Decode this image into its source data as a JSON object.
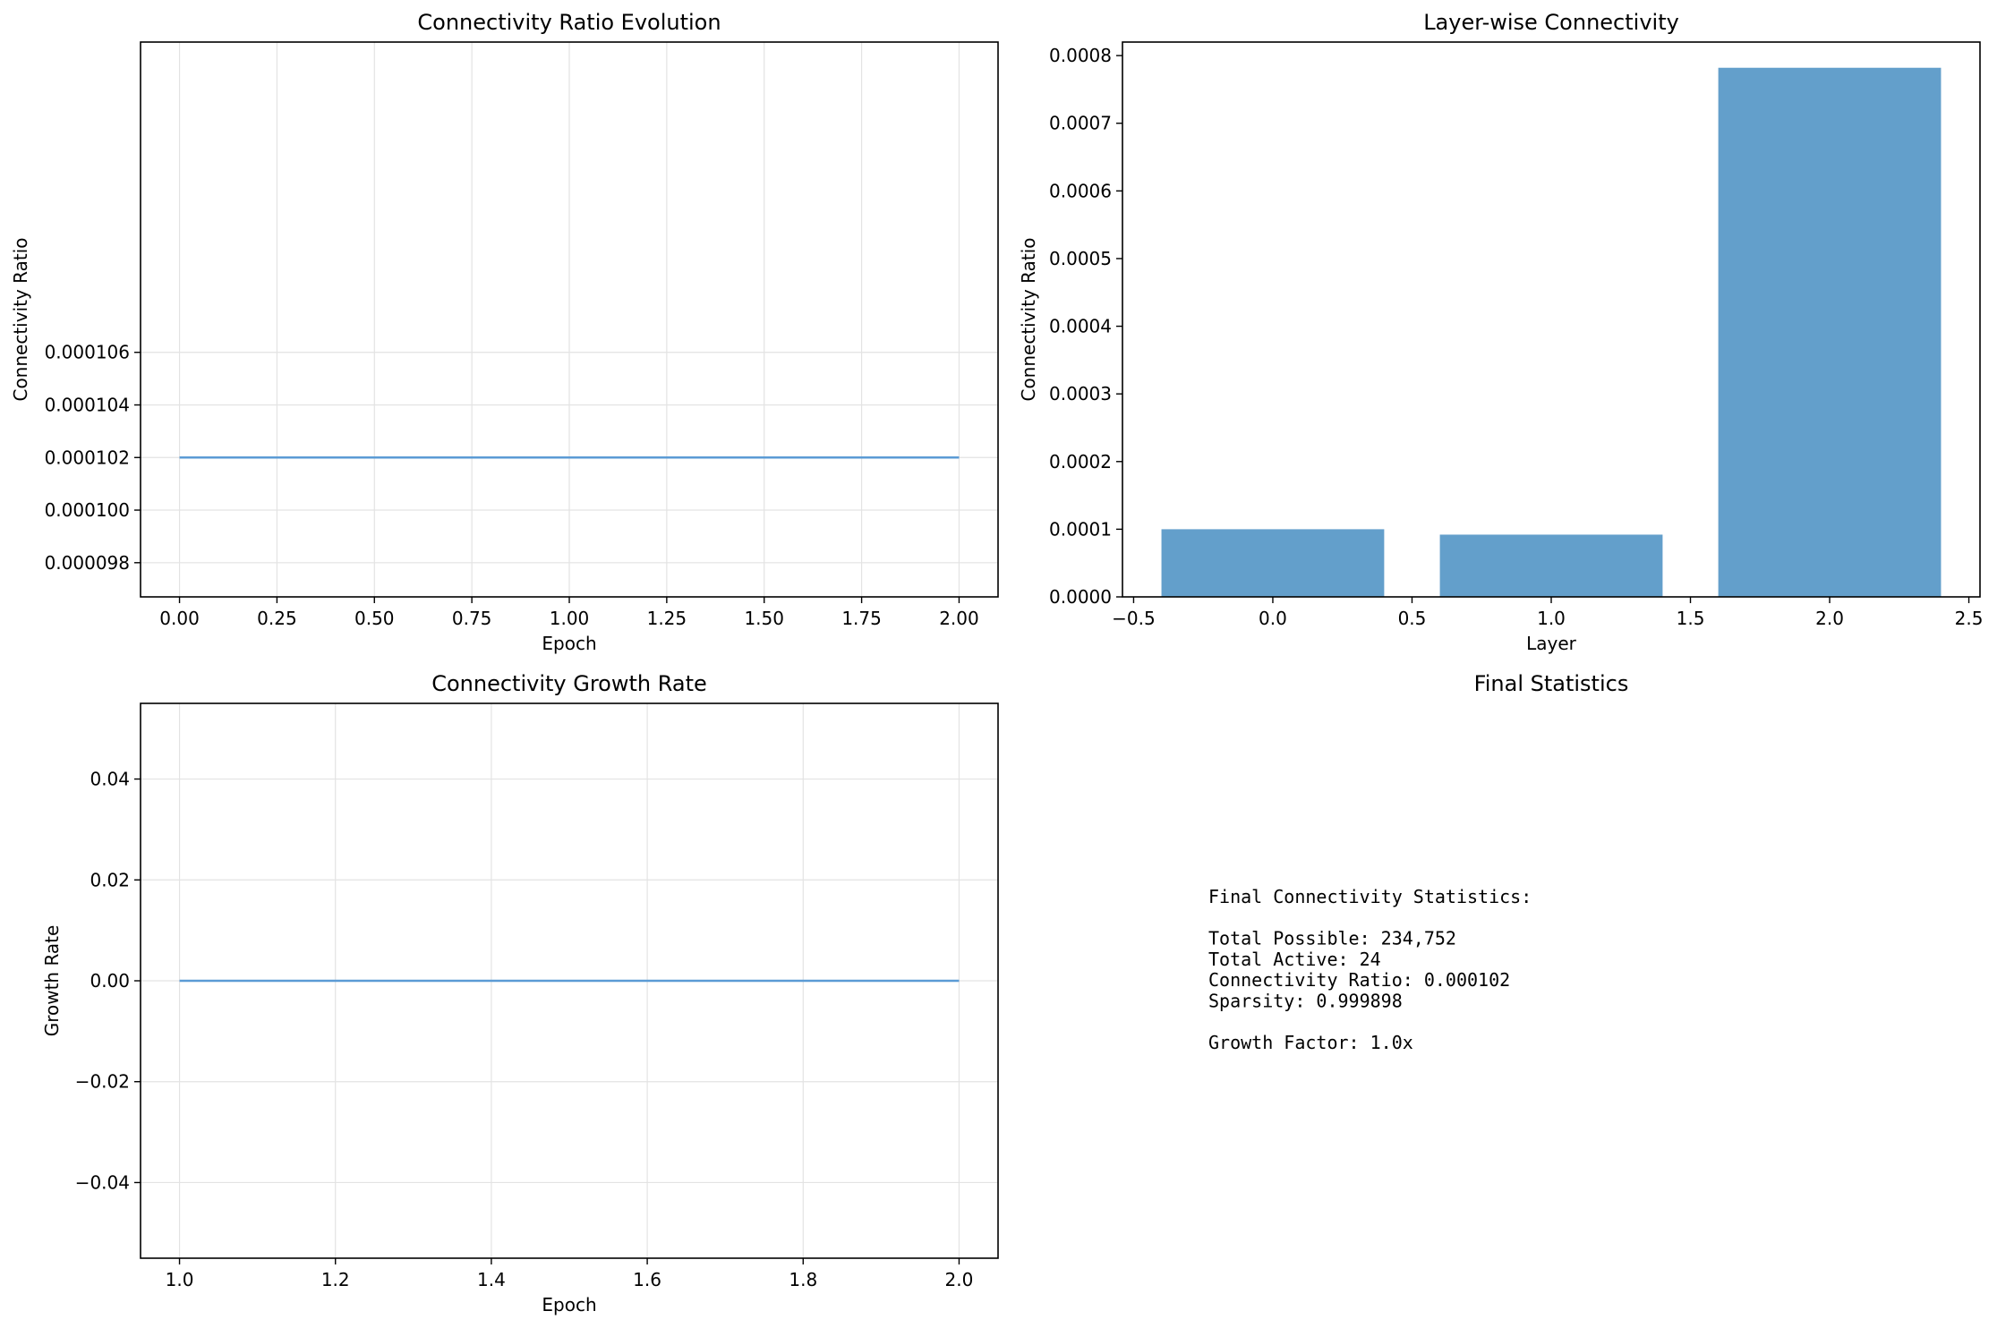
{
  "chart_data": [
    {
      "type": "line",
      "title": "Connectivity Ratio Evolution",
      "xlabel": "Epoch",
      "ylabel": "Connectivity Ratio",
      "xlim": [
        -0.1,
        2.1
      ],
      "ylim": [
        9.67e-05,
        0.0001178
      ],
      "xticks": [
        0.0,
        0.25,
        0.5,
        0.75,
        1.0,
        1.25,
        1.5,
        1.75,
        2.0
      ],
      "xtick_labels": [
        "0.00",
        "0.25",
        "0.50",
        "0.75",
        "1.00",
        "1.25",
        "1.50",
        "1.75",
        "2.00"
      ],
      "yticks": [
        9.8e-05,
        0.0001,
        0.000102,
        0.000104,
        0.000106
      ],
      "ytick_labels": [
        "0.000098",
        "0.000100",
        "0.000102",
        "0.000104",
        "0.000106"
      ],
      "grid": true,
      "series": [
        {
          "x": [
            0,
            1,
            2
          ],
          "values": [
            0.000102,
            0.000102,
            0.000102
          ],
          "color": "#5b9bd5"
        }
      ]
    },
    {
      "type": "bar",
      "title": "Layer-wise Connectivity",
      "xlabel": "Layer",
      "ylabel": "Connectivity Ratio",
      "xlim": [
        -0.54,
        2.54
      ],
      "ylim": [
        0,
        0.00082
      ],
      "bar_width": 0.8,
      "xticks": [
        -0.5,
        0.0,
        0.5,
        1.0,
        1.5,
        2.0,
        2.5
      ],
      "xtick_labels": [
        "−0.5",
        "0.0",
        "0.5",
        "1.0",
        "1.5",
        "2.0",
        "2.5"
      ],
      "yticks": [
        0,
        0.0001,
        0.0002,
        0.0003,
        0.0004,
        0.0005,
        0.0006,
        0.0007,
        0.0008
      ],
      "ytick_labels": [
        "0.0000",
        "0.0001",
        "0.0002",
        "0.0003",
        "0.0004",
        "0.0005",
        "0.0006",
        "0.0007",
        "0.0008"
      ],
      "grid": false,
      "color": "#639fcb",
      "x": [
        0,
        1,
        2
      ],
      "values": [
        0.0001,
        9.2e-05,
        0.000782
      ]
    },
    {
      "type": "line",
      "title": "Connectivity Growth Rate",
      "xlabel": "Epoch",
      "ylabel": "Growth Rate",
      "xlim": [
        0.95,
        2.05
      ],
      "ylim": [
        -0.055,
        0.055
      ],
      "xticks": [
        1.0,
        1.2,
        1.4,
        1.6,
        1.8,
        2.0
      ],
      "xtick_labels": [
        "1.0",
        "1.2",
        "1.4",
        "1.6",
        "1.8",
        "2.0"
      ],
      "yticks": [
        -0.04,
        -0.02,
        0.0,
        0.02,
        0.04
      ],
      "ytick_labels": [
        "−0.04",
        "−0.02",
        "0.00",
        "0.02",
        "0.04"
      ],
      "grid": true,
      "series": [
        {
          "x": [
            1,
            2
          ],
          "values": [
            0.0,
            0.0
          ],
          "color": "#5b9bd5"
        }
      ]
    }
  ],
  "stats_panel": {
    "title": "Final Statistics",
    "lines": [
      "Final Connectivity Statistics:",
      "",
      "Total Possible: 234,752",
      "Total Active: 24",
      "Connectivity Ratio: 0.000102",
      "Sparsity: 0.999898",
      "",
      "Growth Factor: 1.0x"
    ]
  }
}
